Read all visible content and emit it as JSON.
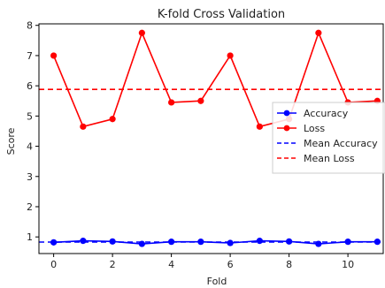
{
  "chart_data": {
    "type": "line",
    "title": "K-fold Cross Validation",
    "xlabel": "Fold",
    "ylabel": "Score",
    "xlim": [
      -0.5,
      11.2
    ],
    "ylim": [
      0.45,
      8.05
    ],
    "x_ticks": [
      "0",
      "2",
      "4",
      "6",
      "8",
      "10"
    ],
    "y_ticks": [
      "1",
      "2",
      "3",
      "4",
      "5",
      "6",
      "7",
      "8"
    ],
    "x": [
      0,
      1,
      2,
      3,
      4,
      5,
      6,
      7,
      8,
      9,
      10,
      11
    ],
    "series": [
      {
        "name": "Accuracy",
        "color": "#0000ff",
        "style": "solid-with-markers",
        "values": [
          0.82,
          0.87,
          0.85,
          0.77,
          0.84,
          0.84,
          0.8,
          0.87,
          0.85,
          0.77,
          0.84,
          0.84
        ]
      },
      {
        "name": "Loss",
        "color": "#ff0000",
        "style": "solid-with-markers",
        "values": [
          7.0,
          4.65,
          4.9,
          7.75,
          5.45,
          5.5,
          7.0,
          4.65,
          4.9,
          7.75,
          5.45,
          5.5
        ]
      },
      {
        "name": "Mean Accuracy",
        "color": "#0000ff",
        "style": "dashed",
        "value": 0.83
      },
      {
        "name": "Mean Loss",
        "color": "#ff0000",
        "style": "dashed",
        "value": 5.88
      }
    ],
    "legend_position": "center-right",
    "grid": false
  }
}
